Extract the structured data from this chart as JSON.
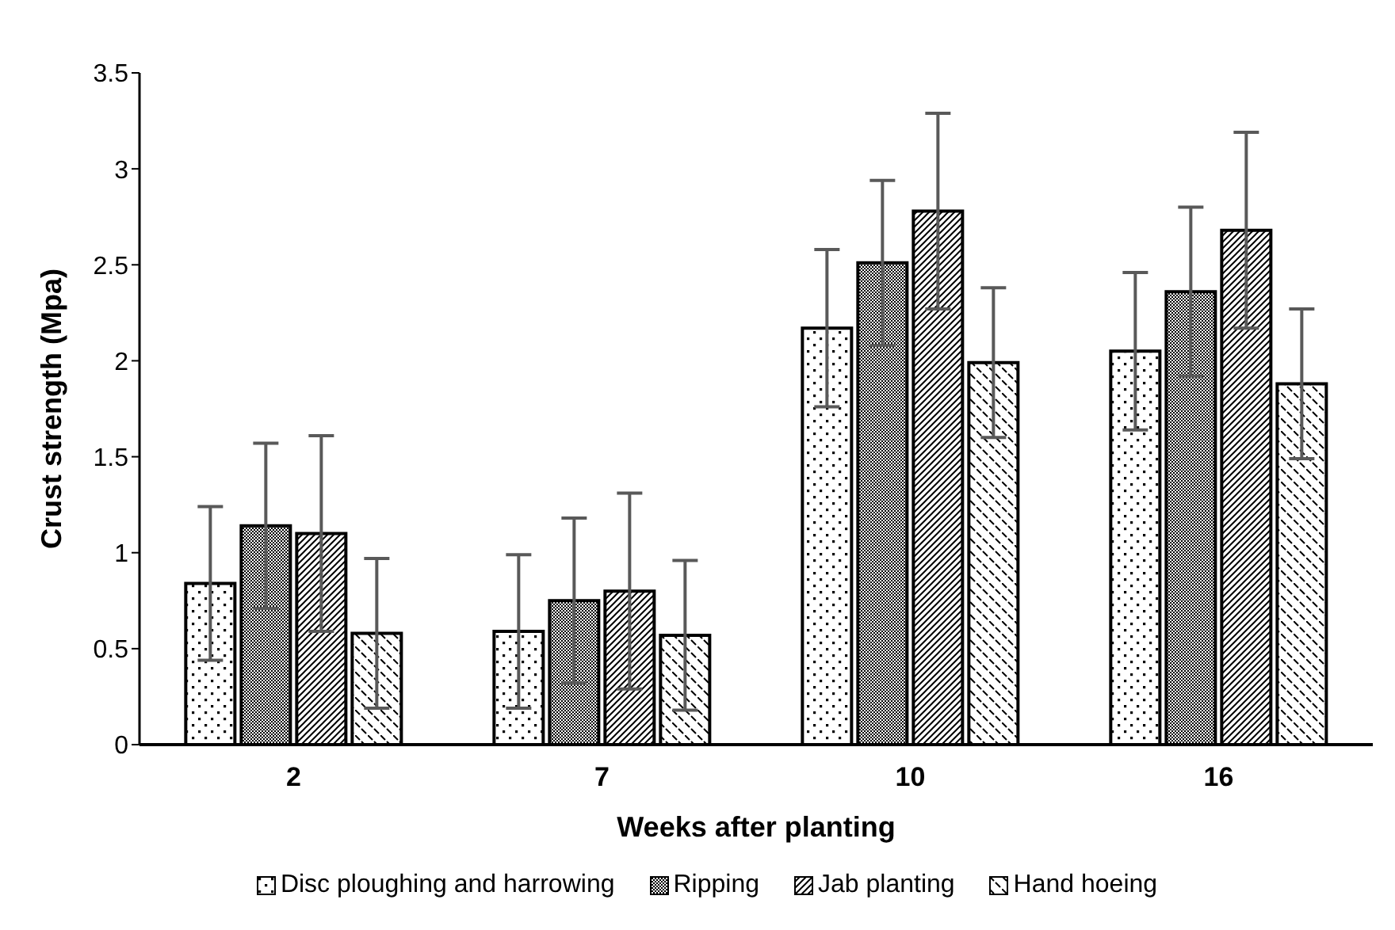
{
  "chart_data": {
    "type": "bar",
    "xlabel": "Weeks after planting",
    "ylabel": "Crust strength (Mpa)",
    "categories": [
      "2",
      "7",
      "10",
      "16"
    ],
    "series": [
      {
        "name": "Disc ploughing and harrowing",
        "color": "#000000",
        "values": [
          0.84,
          0.59,
          2.17,
          2.05
        ],
        "errors": [
          0.4,
          0.4,
          0.41,
          0.41
        ]
      },
      {
        "name": "Ripping",
        "color": "#000000",
        "values": [
          1.14,
          0.75,
          2.51,
          2.36
        ],
        "errors": [
          0.43,
          0.43,
          0.43,
          0.44
        ]
      },
      {
        "name": "Jab planting",
        "color": "#000000",
        "values": [
          1.1,
          0.8,
          2.78,
          2.68
        ],
        "errors": [
          0.51,
          0.51,
          0.51,
          0.51
        ]
      },
      {
        "name": "Hand hoeing",
        "color": "#000000",
        "values": [
          0.58,
          0.57,
          1.99,
          1.88
        ],
        "errors": [
          0.39,
          0.39,
          0.39,
          0.39
        ]
      }
    ],
    "ylim": [
      0,
      3.5
    ],
    "yticks": [
      0,
      0.5,
      1,
      1.5,
      2,
      2.5,
      3,
      3.5
    ],
    "legend": "bottom"
  }
}
